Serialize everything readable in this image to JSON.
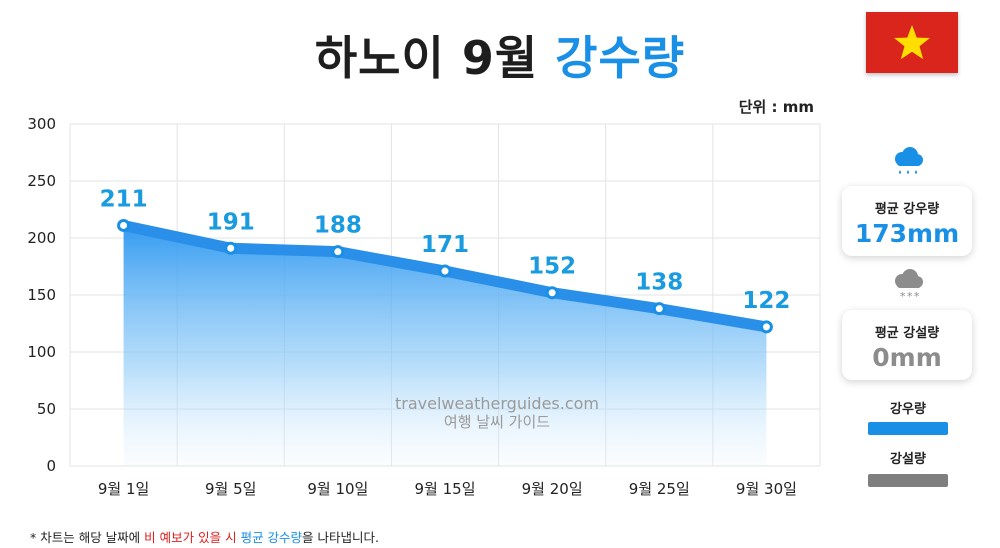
{
  "header": {
    "title_main": "하노이 9월",
    "title_accent": "강수량",
    "unit": "단위 : mm"
  },
  "flag": {
    "country": "Vietnam",
    "color": "#da251d",
    "star_color": "#ffde00",
    "icon": "star-icon"
  },
  "chart_data": {
    "type": "area",
    "categories": [
      "9월 1일",
      "9월 5일",
      "9월 10일",
      "9월 15일",
      "9월 20일",
      "9월 25일",
      "9월 30일"
    ],
    "series": [
      {
        "name": "강우량",
        "values": [
          211,
          191,
          188,
          171,
          152,
          138,
          122
        ],
        "color": "#1a8fe6"
      }
    ],
    "ylim": [
      0,
      300
    ],
    "yticks": [
      0,
      50,
      100,
      150,
      200,
      250,
      300
    ],
    "grid": true,
    "legend": "right"
  },
  "sidebar": {
    "rain_card": {
      "label": "평균 강우량",
      "value": "173mm",
      "icon": "rain-cloud-icon"
    },
    "snow_card": {
      "label": "평균 강설량",
      "value": "0mm",
      "icon": "snow-cloud-icon"
    },
    "legend": [
      {
        "label": "강우량",
        "color": "#1a8fe6"
      },
      {
        "label": "강설량",
        "color": "#7f7f7f"
      }
    ]
  },
  "watermark": {
    "line1": "travelweatherguides.com",
    "line2": "여행 날씨 가이드"
  },
  "footnote": {
    "prefix": "* 차트는 해당 날짜에 ",
    "red": "비 예보가 있을 시",
    "mid": " ",
    "blue": "평균 강수량",
    "suffix": "을 나타냅니다."
  }
}
